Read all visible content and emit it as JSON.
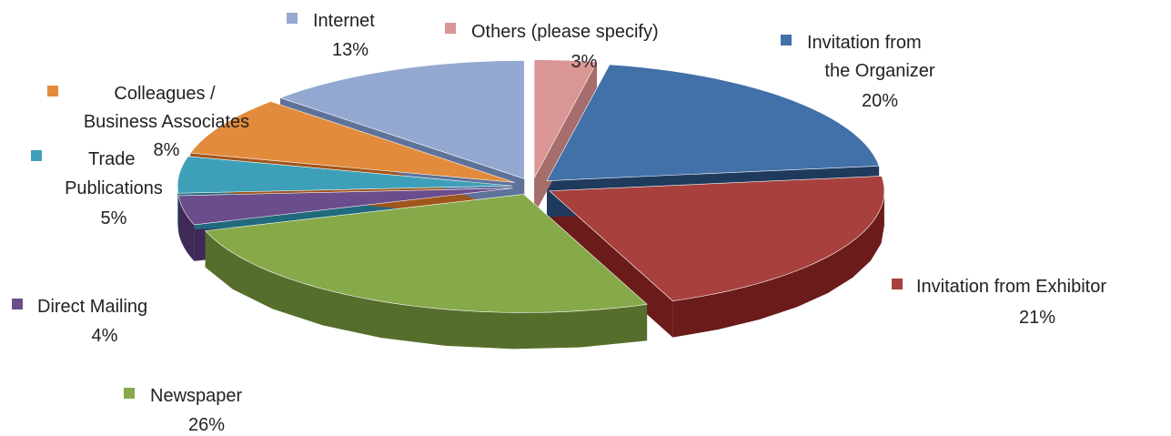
{
  "chart_data": {
    "type": "pie",
    "style": "3d-exploded",
    "title": "",
    "slices": [
      {
        "label": "Others (please specify)",
        "value": 3,
        "value_label": "3%",
        "color": "#d99694",
        "side_color": "#a56d6b"
      },
      {
        "label": "Invitation from the Organizer",
        "value": 20,
        "value_label": "20%",
        "color": "#4270a8",
        "side_color": "#1f3a5c"
      },
      {
        "label": "Invitation from Exhibitor",
        "value": 21,
        "value_label": "21%",
        "color": "#a8403d",
        "side_color": "#6b1c1a"
      },
      {
        "label": "Newspaper",
        "value": 26,
        "value_label": "26%",
        "color": "#86a94a",
        "side_color": "#566e2b"
      },
      {
        "label": "Direct Mailing",
        "value": 4,
        "value_label": "4%",
        "color": "#6b4c8c",
        "side_color": "#3f2a57"
      },
      {
        "label": "Trade Publications",
        "value": 5,
        "value_label": "5%",
        "color": "#3ea0b8",
        "side_color": "#206a7c"
      },
      {
        "label": "Colleagues / Business Associates",
        "value": 8,
        "value_label": "8%",
        "color": "#e28b3c",
        "side_color": "#a0561a"
      },
      {
        "label": "Internet",
        "value": 13,
        "value_label": "13%",
        "color": "#94a9d1",
        "side_color": "#5f7299"
      }
    ]
  }
}
